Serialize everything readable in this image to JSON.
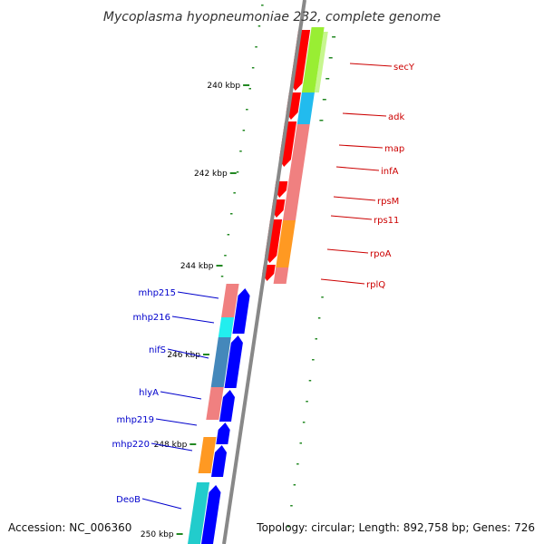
{
  "title": "Mycoplasma hyopneumoniae 232, complete genome",
  "footer": {
    "accession": "Accession: NC_006360",
    "topology": "Topology: circular; Length: 892,758 bp; Genes: 726"
  },
  "scale_labels": [
    "240 kbp",
    "242 kbp",
    "244 kbp",
    "246 kbp",
    "248 kbp",
    "250 kbp"
  ],
  "colors": {
    "forward_strand": "#0000ff",
    "reverse_strand": "#ff0000",
    "forward_label": "#0000cc",
    "reverse_label": "#cc0000",
    "backbone": "#888888",
    "ticks": "#228822",
    "cog_pink": "#f08080",
    "cog_lime": "#99ee33",
    "cog_sky": "#22bbee",
    "cog_orange": "#ff9922",
    "cog_cyan": "#22eeee",
    "cog_steel": "#4488bb",
    "cog_teal": "#22cccc"
  },
  "reverse_genes": [
    {
      "label": "secY",
      "cog": "cog_lime"
    },
    {
      "label": "adk",
      "cog": "cog_sky"
    },
    {
      "label": "map",
      "cog": "cog_pink"
    },
    {
      "label": "infA",
      "cog": "cog_pink"
    },
    {
      "label": "rpsM",
      "cog": "cog_pink"
    },
    {
      "label": "rps11",
      "cog": "cog_pink"
    },
    {
      "label": "rpoA",
      "cog": "cog_orange"
    },
    {
      "label": "rplQ",
      "cog": "cog_pink"
    }
  ],
  "forward_genes": [
    {
      "label": "mhp215",
      "cog": "cog_pink"
    },
    {
      "label": "mhp216",
      "cog": "cog_cyan"
    },
    {
      "label": "nifS",
      "cog": "cog_steel"
    },
    {
      "label": "hlyA",
      "cog": "cog_pink"
    },
    {
      "label": "mhp219",
      "cog": "cog_pink"
    },
    {
      "label": "mhp220",
      "cog": "cog_orange"
    },
    {
      "label": "DeoB",
      "cog": "cog_teal"
    }
  ]
}
